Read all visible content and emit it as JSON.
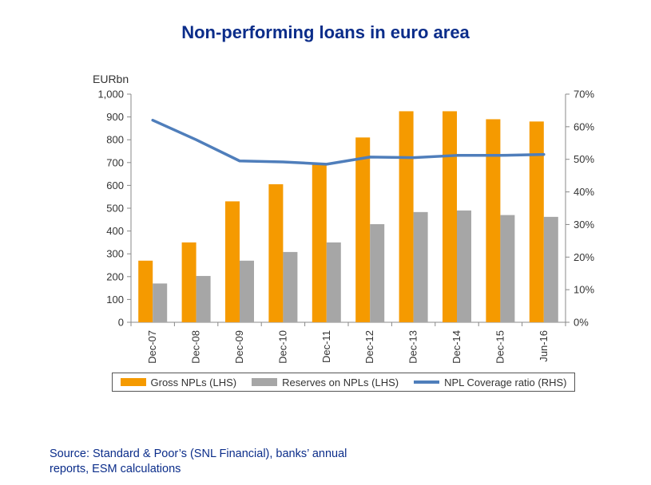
{
  "chart_data": {
    "type": "bar",
    "title": "Non-performing loans in euro area",
    "left_axis_unit": "EURbn",
    "categories": [
      "Dec-07",
      "Dec-08",
      "Dec-09",
      "Dec-10",
      "Dec-11",
      "Dec-12",
      "Dec-13",
      "Dec-14",
      "Dec-15",
      "Jun-16"
    ],
    "series": [
      {
        "name": "Gross NPLs (LHS)",
        "kind": "bar",
        "axis": "left",
        "color": "#f59a00",
        "values": [
          270,
          350,
          530,
          605,
          695,
          810,
          925,
          925,
          890,
          880
        ]
      },
      {
        "name": "Reserves on NPLs (LHS)",
        "kind": "bar",
        "axis": "left",
        "color": "#a6a6a6",
        "values": [
          170,
          203,
          270,
          308,
          350,
          430,
          483,
          490,
          470,
          462
        ]
      },
      {
        "name": "NPL Coverage ratio (RHS)",
        "kind": "line",
        "axis": "right",
        "color": "#4f7ebb",
        "values": [
          62,
          56,
          49.5,
          49.2,
          48.5,
          50.7,
          50.5,
          51.2,
          51.2,
          51.5
        ]
      }
    ],
    "y_left": {
      "min": 0,
      "max": 1000,
      "step": 100,
      "tick_labels": [
        "0",
        "100",
        "200",
        "300",
        "400",
        "500",
        "600",
        "700",
        "800",
        "900",
        "1,000"
      ]
    },
    "y_right": {
      "min": 0,
      "max": 70,
      "step": 10,
      "tick_labels": [
        "0%",
        "10%",
        "20%",
        "30%",
        "40%",
        "50%",
        "60%",
        "70%"
      ]
    },
    "grid": false,
    "legend_position": "bottom"
  },
  "source": "Source: Standard & Poor’s (SNL Financial), banks’ annual reports, ESM calculations"
}
